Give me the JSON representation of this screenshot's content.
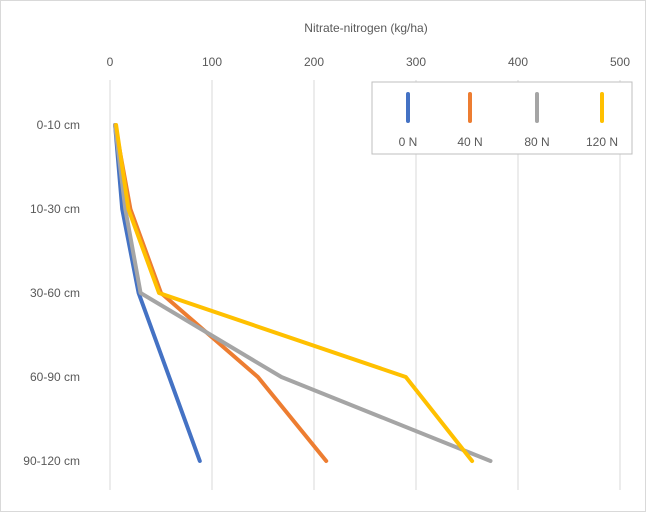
{
  "chart_data": {
    "type": "line",
    "orientation": "horizontal-depth-profile",
    "title": "",
    "xlabel": "Nitrate-nitrogen  (kg/ha)",
    "ylabel": "",
    "x_axis_position": "top",
    "xlim": [
      0,
      500
    ],
    "x_ticks": [
      0,
      100,
      200,
      300,
      400,
      500
    ],
    "categories": [
      "0-10 cm",
      "10-30 cm",
      "30-60 cm",
      "60-90 cm",
      "90-120 cm"
    ],
    "grid": "vertical",
    "legend_position": "top-right",
    "series": [
      {
        "name": "0 N",
        "color": "#4472C4",
        "values": [
          5,
          12,
          28,
          58,
          88
        ]
      },
      {
        "name": "40 N",
        "color": "#ED7D31",
        "values": [
          5,
          20,
          50,
          145,
          212
        ]
      },
      {
        "name": "80 N",
        "color": "#A5A5A5",
        "values": [
          5,
          15,
          30,
          168,
          373
        ]
      },
      {
        "name": "120 N",
        "color": "#FFC000",
        "values": [
          6,
          18,
          48,
          290,
          355
        ]
      }
    ]
  }
}
